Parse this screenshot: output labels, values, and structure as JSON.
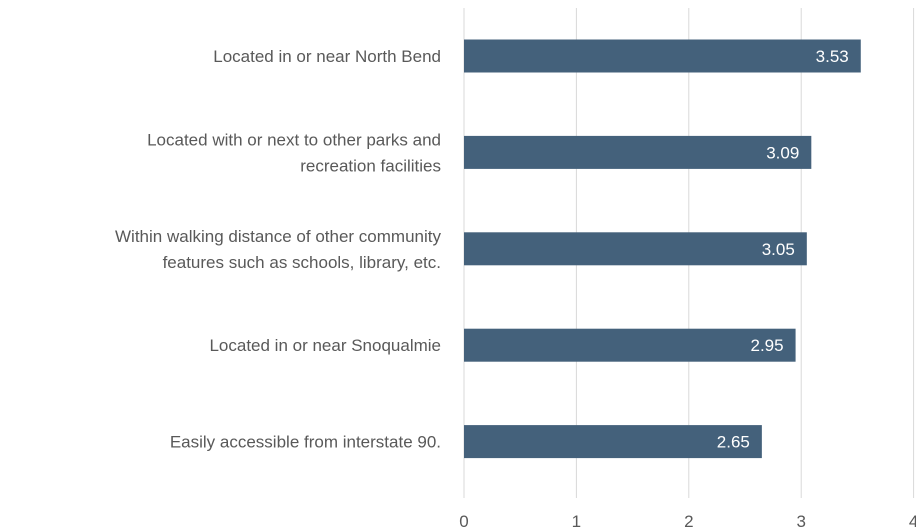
{
  "chart_data": {
    "type": "bar",
    "orientation": "horizontal",
    "categories": [
      [
        "Located in or near North Bend"
      ],
      [
        "Located with or next to other parks and",
        "recreation facilities"
      ],
      [
        "Within walking distance of other community",
        "features such as schools, library, etc."
      ],
      [
        "Located in or near Snoqualmie"
      ],
      [
        "Easily accessible from interstate 90."
      ]
    ],
    "values": [
      3.53,
      3.09,
      3.05,
      2.95,
      2.65
    ],
    "data_labels": [
      "3.53",
      "3.09",
      "3.05",
      "2.95",
      "2.65"
    ],
    "xlim": [
      0,
      4
    ],
    "x_ticks": [
      0,
      1,
      2,
      3,
      4
    ],
    "x_tick_labels": [
      "0",
      "1",
      "2",
      "3",
      "4"
    ],
    "grid": true,
    "bar_color": "#44617b",
    "grid_color": "#d9d9d9",
    "label_color": "#595959",
    "data_label_color": "#ffffff"
  }
}
